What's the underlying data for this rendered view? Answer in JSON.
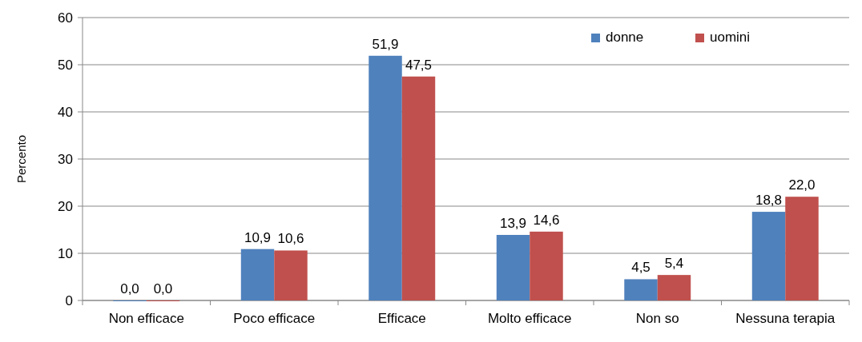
{
  "chart_data": {
    "type": "bar",
    "ylabel": "Percento",
    "categories": [
      "Non efficace",
      "Poco efficace",
      "Efficace",
      "Molto efficace",
      "Non so",
      "Nessuna terapia"
    ],
    "series": [
      {
        "name": "donne",
        "color": "#4f81bd",
        "values": [
          0.0,
          10.9,
          51.9,
          13.9,
          4.5,
          18.8
        ],
        "value_labels": [
          "0,0",
          "10,9",
          "51,9",
          "13,9",
          "4,5",
          "18,8"
        ]
      },
      {
        "name": "uomini",
        "color": "#c0504d",
        "values": [
          0.0,
          10.6,
          47.5,
          14.6,
          5.4,
          22.0
        ],
        "value_labels": [
          "0,0",
          "10,6",
          "47,5",
          "14,6",
          "5,4",
          "22,0"
        ]
      }
    ],
    "ylim": [
      0,
      60
    ],
    "yticks": [
      0,
      10,
      20,
      30,
      40,
      50,
      60
    ],
    "grid": "y",
    "legend": "top right"
  }
}
